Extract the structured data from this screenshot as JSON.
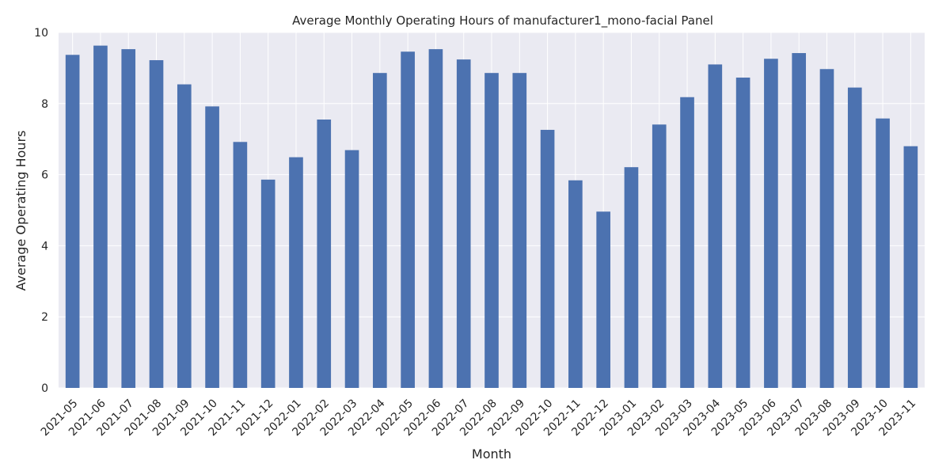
{
  "chart_data": {
    "type": "bar",
    "title": "Average Monthly Operating Hours of manufacturer1_mono-facial Panel",
    "xlabel": "Month",
    "ylabel": "Average Operating Hours",
    "ylim": [
      0,
      10
    ],
    "yticks": [
      0,
      2,
      4,
      6,
      8,
      10
    ],
    "grid": true,
    "legend": "none",
    "categories": [
      "2021-05",
      "2021-06",
      "2021-07",
      "2021-08",
      "2021-09",
      "2021-10",
      "2021-11",
      "2021-12",
      "2022-01",
      "2022-02",
      "2022-03",
      "2022-04",
      "2022-05",
      "2022-06",
      "2022-07",
      "2022-08",
      "2022-09",
      "2022-10",
      "2022-11",
      "2022-12",
      "2023-01",
      "2023-02",
      "2023-03",
      "2023-04",
      "2023-05",
      "2023-06",
      "2023-07",
      "2023-08",
      "2023-09",
      "2023-10",
      "2023-11"
    ],
    "values": [
      9.37,
      9.63,
      9.53,
      9.22,
      8.54,
      7.92,
      6.92,
      5.86,
      6.49,
      7.55,
      6.69,
      8.86,
      9.46,
      9.53,
      9.24,
      8.86,
      8.86,
      7.26,
      5.84,
      4.96,
      6.21,
      7.41,
      8.18,
      9.1,
      8.73,
      9.26,
      9.42,
      8.97,
      8.45,
      7.58,
      6.8
    ],
    "colors": {
      "bar": "#4c72b0",
      "plot_bg": "#eaeaf2",
      "grid": "#ffffff",
      "text": "#262626"
    }
  }
}
